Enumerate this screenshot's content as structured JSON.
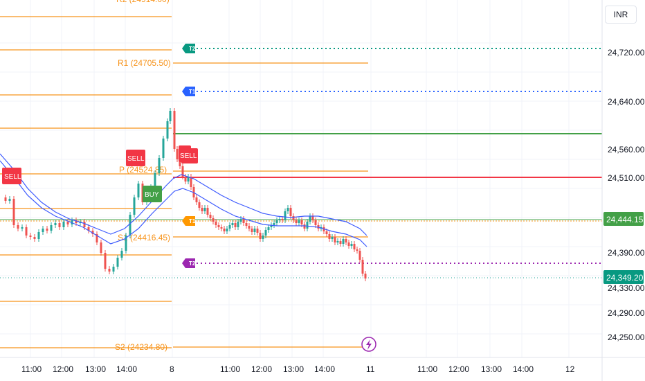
{
  "currency": "INR",
  "price_axis": {
    "ticks": [
      "24,720.00",
      "24,640.00",
      "24,560.00",
      "24,510.00",
      "24,390.00",
      "24,330.00",
      "24,290.00",
      "24,250.00"
    ]
  },
  "time_axis": {
    "ticks": [
      "11:00",
      "12:00",
      "13:00",
      "14:00",
      "8",
      "11:00",
      "12:00",
      "13:00",
      "14:00",
      "11",
      "11:00",
      "12:00",
      "13:00",
      "14:00",
      "12"
    ]
  },
  "last_price": "24,349.20",
  "marker_price": "24,444.15",
  "pivot_labels": {
    "r1": "R1 (24705.50)",
    "p": "P (24524.85)",
    "s1": "S1 (24416.45)",
    "s2": "S2 (24234.80)"
  },
  "tags": {
    "t2_top": "T2",
    "t1_top": "T1",
    "t1_mid": "T1",
    "t2_bottom": "T2"
  },
  "signals": [
    "SELL",
    "SELL",
    "BUY",
    "SELL"
  ],
  "colors": {
    "pivot": "#f7931a",
    "up": "#26a69a",
    "down": "#ef5350",
    "ma": "#3d5afe",
    "buy": "#43a047",
    "sell": "#f23645",
    "target_green": "#089981",
    "target_blue": "#2962ff",
    "target_purple": "#9c27b0"
  }
}
